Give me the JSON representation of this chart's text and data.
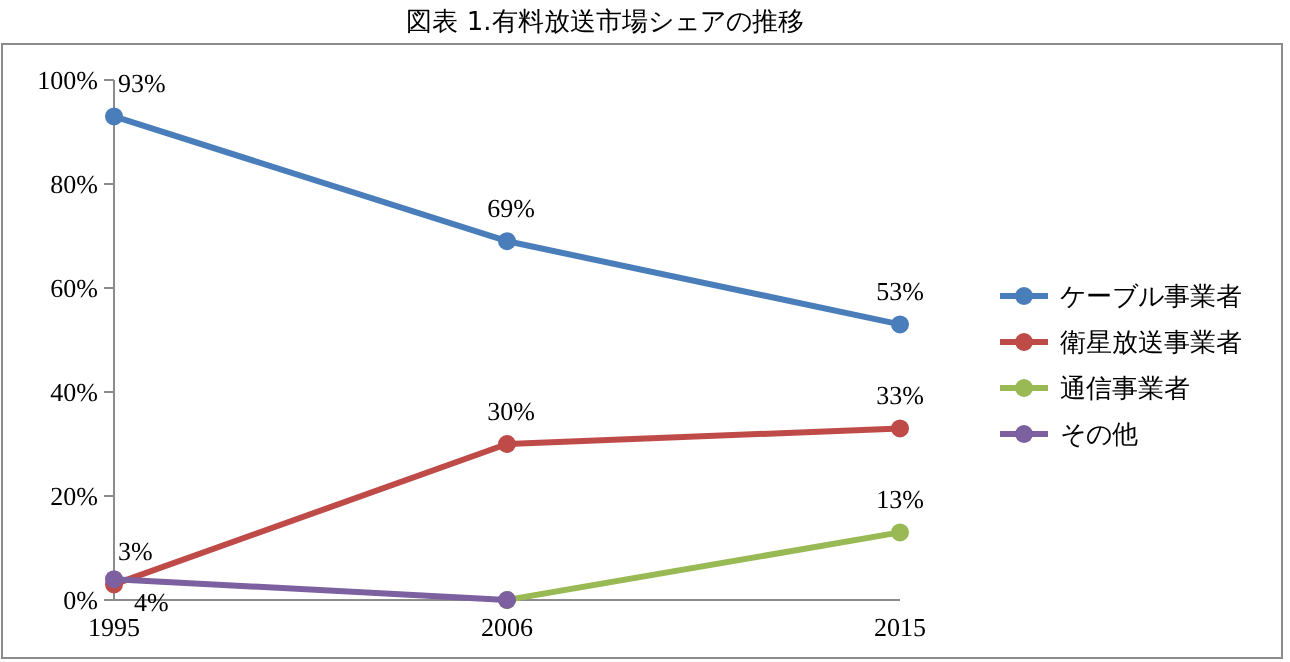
{
  "chart_data": {
    "type": "line",
    "title": "図表 1.有料放送市場シェアの推移",
    "categories": [
      "1995",
      "2006",
      "2015"
    ],
    "series": [
      {
        "name": "ケーブル事業者",
        "color": "#4a7ebb",
        "values": [
          93,
          69,
          53
        ],
        "value_labels": [
          "93%",
          "69%",
          "53%"
        ]
      },
      {
        "name": "衛星放送事業者",
        "color": "#be4b48",
        "values": [
          3,
          30,
          33
        ],
        "value_labels": [
          "3%",
          "30%",
          "33%"
        ]
      },
      {
        "name": "通信事業者",
        "color": "#98b954",
        "values": [
          null,
          0,
          13
        ],
        "value_labels": [
          null,
          null,
          "13%"
        ]
      },
      {
        "name": "その他",
        "color": "#7d60a0",
        "values": [
          4,
          0,
          null
        ],
        "value_labels": [
          "4%",
          null,
          null
        ]
      }
    ],
    "ylim": [
      0,
      100
    ],
    "yticks": [
      {
        "value": 0,
        "label": "0%"
      },
      {
        "value": 20,
        "label": "20%"
      },
      {
        "value": 40,
        "label": "40%"
      },
      {
        "value": 60,
        "label": "60%"
      },
      {
        "value": 80,
        "label": "80%"
      },
      {
        "value": 100,
        "label": "100%"
      }
    ],
    "grid": false,
    "legend": "right",
    "marker": "circle",
    "line_style": "solid"
  }
}
